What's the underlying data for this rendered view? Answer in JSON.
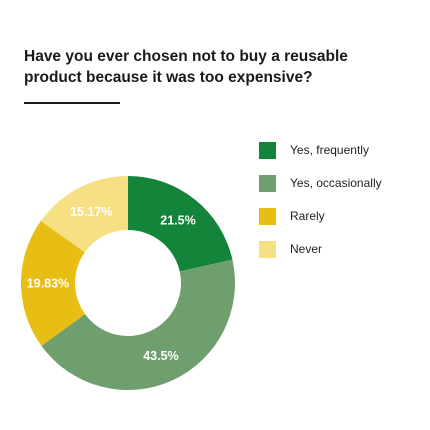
{
  "chart_data": {
    "type": "pie",
    "donut": true,
    "title": "Have you ever chosen not to buy a reusable product because it was too expensive?",
    "categories": [
      "Yes, frequently",
      "Yes, occasionally",
      "Rarely",
      "Never"
    ],
    "values": [
      21.5,
      43.5,
      19.83,
      15.17
    ],
    "value_labels": [
      "21.5%",
      "43.5%",
      "19.83%",
      "15.17%"
    ],
    "colors": [
      "#15843b",
      "#6f9e6f",
      "#e8bd14",
      "#f7df84"
    ],
    "legend_position": "right"
  }
}
